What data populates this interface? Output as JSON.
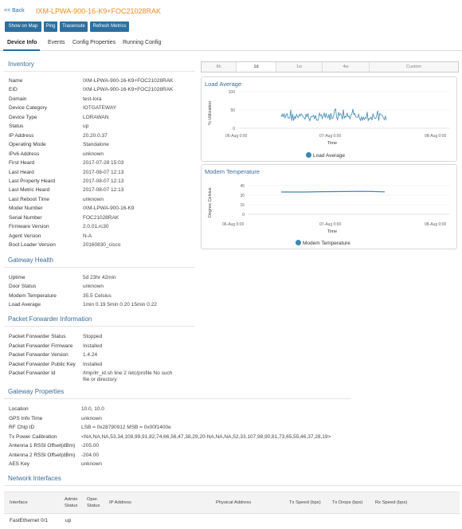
{
  "header": {
    "back": "<< Back",
    "title": "IXM-LPWA-900-16-K9+FOC21028RAK"
  },
  "toolbar": {
    "show_on_map": "Show on Map",
    "ping": "Ping",
    "traceroute": "Traceroute",
    "refresh": "Refresh Metrics"
  },
  "tabs": [
    "Device Info",
    "Events",
    "Config Properties",
    "Running Config"
  ],
  "sections": {
    "inventory": "Inventory",
    "gateway_health": "Gateway Health",
    "packet_forwarder": "Packet Forwarder Information",
    "gateway_properties": "Gateway Properties",
    "network_interfaces": "Network Interfaces"
  },
  "inventory": [
    {
      "label": "Name",
      "value": "IXM-LPWA-900-16-K9+FOC21028RAK"
    },
    {
      "label": "EID",
      "value": "IXM-LPWA-900-16-K9+FOC21028RAK"
    },
    {
      "label": "Domain",
      "value": "test-lora"
    },
    {
      "label": "Device Category",
      "value": "IOTGATEWAY"
    },
    {
      "label": "Device Type",
      "value": "LORAWAN"
    },
    {
      "label": "Status",
      "value": "up"
    },
    {
      "label": "IP Address",
      "value": "20.20.0.37"
    },
    {
      "label": "Operating Mode",
      "value": "Standalone"
    },
    {
      "label": "IPv6 Address",
      "value": "unknown"
    },
    {
      "label": "First Heard",
      "value": "2017-07-28 15:03"
    },
    {
      "label": "Last Heard",
      "value": "2017-08-07 12:13"
    },
    {
      "label": "Last Property Heard",
      "value": "2017-08-07 12:13"
    },
    {
      "label": "Last Metric Heard",
      "value": "2017-08-07 12:13"
    },
    {
      "label": "Last Reboot Time",
      "value": "unknown"
    },
    {
      "label": "Model Number",
      "value": "IXM-LPWA-900-16-K9"
    },
    {
      "label": "Serial Number",
      "value": "FOC21028RAK"
    },
    {
      "label": "Firmware Version",
      "value": "2.0.01.rc30"
    },
    {
      "label": "Agent Version",
      "value": "N-A"
    },
    {
      "label": "Boot Loader Version",
      "value": "20160830_cisco"
    }
  ],
  "gateway_health": [
    {
      "label": "Uptime",
      "value": "5d 23hr 42min"
    },
    {
      "label": "Door Status",
      "value": "unknown"
    },
    {
      "label": "Modem Temperature",
      "value": "35.5 Celsius"
    },
    {
      "label": "Load Average",
      "value": "1min 0.19 5min 0.20 15min 0.22"
    }
  ],
  "packet_forwarder": [
    {
      "label": "Packet Forwarder Status",
      "value": "Stopped"
    },
    {
      "label": "Packet Forwarder Firmware",
      "value": "Installed"
    },
    {
      "label": "Packet Forwarder Version",
      "value": "1.4.24"
    },
    {
      "label": "Packet Forwarder Public Key",
      "value": "Installed"
    },
    {
      "label": "Packet Forwarder Id",
      "value": "/tmp/lrr_id.sh line 2 /etc/profile No such",
      "value2": "file or directory"
    }
  ],
  "gateway_properties": [
    {
      "label": "Location",
      "value": "10.0, 10.0"
    },
    {
      "label": "GPS Info Time",
      "value": "unknown"
    },
    {
      "label": "RF Chip ID",
      "value": "LSB = 0x28790912 MSB = 0x00f1400e"
    },
    {
      "label": "Tx Power Calibration",
      "value": "<NA,NA,NA,53,34,108,99,91,82,74,66,56,47,38,29,20-NA,NA,NA,52,33,107,98,90,81,73,65,55,46,37,28,19>"
    },
    {
      "label": "Antenna 1 RSSI Offset(dBm)",
      "value": "-205.00"
    },
    {
      "label": "Antenna 2 RSSI Offset(dBm)",
      "value": "-204.00"
    },
    {
      "label": "AES Key",
      "value": "unknown"
    }
  ],
  "time_ranges": [
    "6h",
    "1d",
    "1w",
    "4w",
    "Custom"
  ],
  "load_chart": {
    "title": "Load Average",
    "ylabel": "% Utilization",
    "xlabel": "Time",
    "ticks_y": [
      "100",
      "50",
      "0"
    ],
    "ticks_x": [
      "06-Aug 0:00",
      "07-Aug 0:00",
      "08-Aug 0:00"
    ],
    "legend": "Load Average"
  },
  "temp_chart": {
    "title": "Modem Temperature",
    "ylabel": "Degree Celsius",
    "xlabel": "Time",
    "ticks_y": [
      "45",
      "30",
      "15",
      "0"
    ],
    "ticks_x": [
      "06-Aug 0:00",
      "07-Aug 0:00",
      "08-Aug 0:00"
    ],
    "legend": "Modem Temperature"
  },
  "network_table": {
    "headers": [
      "Interface",
      "Admin Status",
      "Oper. Status",
      "IP Address",
      "Physical Address",
      "Tx Speed (bps)",
      "Tx Drops (bps)",
      "Rx Speed (bps)"
    ],
    "rows": [
      [
        "FastEthernet 0/1",
        "up",
        "",
        "",
        "",
        "",
        "",
        ""
      ]
    ]
  },
  "colors": {
    "accent": "#2d6f9e",
    "title": "#f08c1e",
    "section": "#3b6c96",
    "series": "#3a88b4"
  }
}
